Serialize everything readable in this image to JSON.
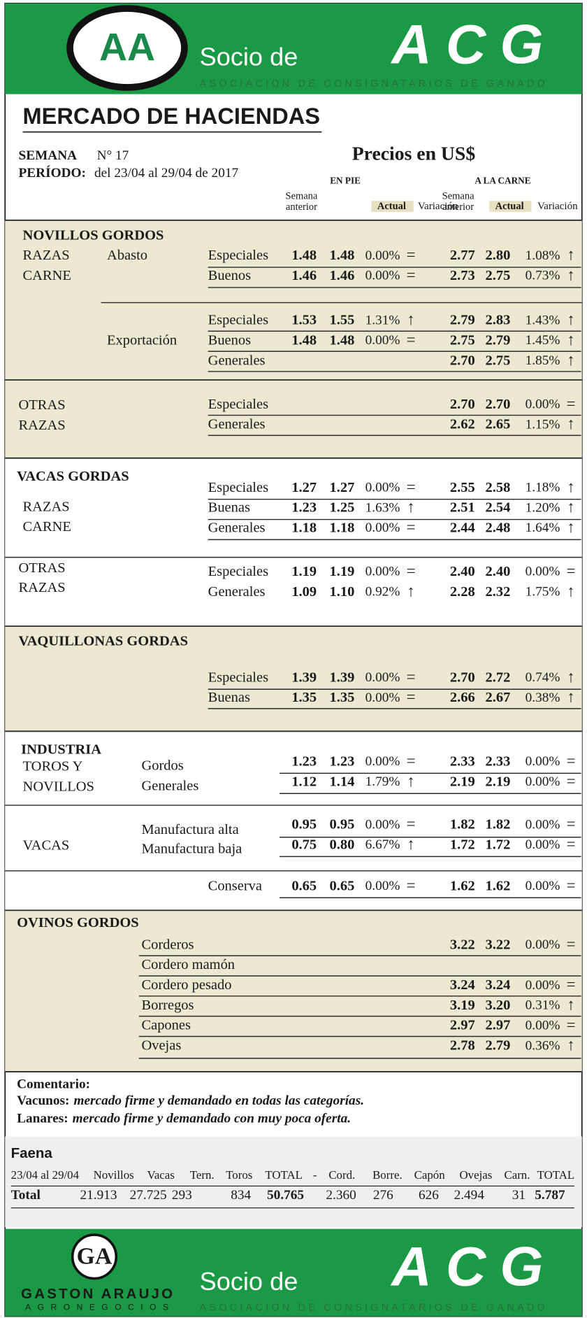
{
  "header": {
    "logo": "AA",
    "socio": "Socio de",
    "acg": "ACG",
    "acg_sub": "ASOCIACION DE CONSIGNATARIOS DE GANADO"
  },
  "title": "MERCADO DE HACIENDAS",
  "semana_label": "SEMANA",
  "semana": "N° 17",
  "periodo_label": "PERÍODO:",
  "periodo": "del 23/04 al 29/04 de 2017",
  "precios": "Precios en US$",
  "columns": {
    "pie": "EN PIE",
    "carne": "A LA CARNE",
    "prev": [
      "Semana",
      "anterior"
    ],
    "actual": "Actual",
    "var": "Variación"
  },
  "sections": [
    {
      "title": "NOVILLOS GORDOS",
      "groups": [
        {
          "labels": [
            "RAZAS",
            "CARNE"
          ],
          "sub": "Abasto",
          "rows": [
            {
              "label": "Especiales",
              "pie": [
                "1.48",
                "1.48",
                "0.00%",
                "="
              ],
              "carne": [
                "2.77",
                "2.80",
                "1.08%",
                "↑"
              ]
            },
            {
              "label": "Buenos",
              "pie": [
                "1.46",
                "1.46",
                "0.00%",
                "="
              ],
              "carne": [
                "2.73",
                "2.75",
                "0.73%",
                "↑"
              ]
            }
          ]
        },
        {
          "sub": "Exportación",
          "rows": [
            {
              "label": "Especiales",
              "pie": [
                "1.53",
                "1.55",
                "1.31%",
                "↑"
              ],
              "carne": [
                "2.79",
                "2.83",
                "1.43%",
                "↑"
              ]
            },
            {
              "label": "Buenos",
              "pie": [
                "1.48",
                "1.48",
                "0.00%",
                "="
              ],
              "carne": [
                "2.75",
                "2.79",
                "1.45%",
                "↑"
              ]
            },
            {
              "label": "Generales",
              "carne": [
                "2.70",
                "2.75",
                "1.85%",
                "↑"
              ]
            }
          ]
        }
      ]
    },
    {
      "groups": [
        {
          "labels": [
            "OTRAS",
            "RAZAS"
          ],
          "rows": [
            {
              "label": "Especiales",
              "carne": [
                "2.70",
                "2.70",
                "0.00%",
                "="
              ]
            },
            {
              "label": "Generales",
              "carne": [
                "2.62",
                "2.65",
                "1.15%",
                "↑"
              ]
            }
          ]
        }
      ]
    },
    {
      "title": "VACAS GORDAS",
      "groups": [
        {
          "labels": [
            "RAZAS",
            "CARNE"
          ],
          "rows": [
            {
              "label": "Especiales",
              "pie": [
                "1.27",
                "1.27",
                "0.00%",
                "="
              ],
              "carne": [
                "2.55",
                "2.58",
                "1.18%",
                "↑"
              ]
            },
            {
              "label": "Buenas",
              "pie": [
                "1.23",
                "1.25",
                "1.63%",
                "↑"
              ],
              "carne": [
                "2.51",
                "2.54",
                "1.20%",
                "↑"
              ]
            },
            {
              "label": "Generales",
              "pie": [
                "1.18",
                "1.18",
                "0.00%",
                "="
              ],
              "carne": [
                "2.44",
                "2.48",
                "1.64%",
                "↑"
              ]
            }
          ]
        },
        {
          "labels": [
            "OTRAS",
            "RAZAS"
          ],
          "rows": [
            {
              "label": "Especiales",
              "pie": [
                "1.19",
                "1.19",
                "0.00%",
                "="
              ],
              "carne": [
                "2.40",
                "2.40",
                "0.00%",
                "="
              ]
            },
            {
              "label": "Generales",
              "pie": [
                "1.09",
                "1.10",
                "0.92%",
                "↑"
              ],
              "carne": [
                "2.28",
                "2.32",
                "1.75%",
                "↑"
              ]
            }
          ]
        }
      ]
    },
    {
      "title": "VAQUILLONAS GORDAS",
      "groups": [
        {
          "rows": [
            {
              "label": "Especiales",
              "pie": [
                "1.39",
                "1.39",
                "0.00%",
                "="
              ],
              "carne": [
                "2.70",
                "2.72",
                "0.74%",
                "↑"
              ]
            },
            {
              "label": "Buenas",
              "pie": [
                "1.35",
                "1.35",
                "0.00%",
                "="
              ],
              "carne": [
                "2.66",
                "2.67",
                "0.38%",
                "↑"
              ]
            }
          ]
        }
      ]
    },
    {
      "title": "INDUSTRIA",
      "groups": [
        {
          "labels": [
            "TOROS Y",
            "NOVILLOS"
          ],
          "rows": [
            {
              "label": "Gordos",
              "pie": [
                "1.23",
                "1.23",
                "0.00%",
                "="
              ],
              "carne": [
                "2.33",
                "2.33",
                "0.00%",
                "="
              ]
            },
            {
              "label": "Generales",
              "pie": [
                "1.12",
                "1.14",
                "1.79%",
                "↑"
              ],
              "carne": [
                "2.19",
                "2.19",
                "0.00%",
                "="
              ]
            }
          ]
        },
        {
          "labels": [
            "VACAS"
          ],
          "rows": [
            {
              "label": "Manufactura alta",
              "pie": [
                "0.95",
                "0.95",
                "0.00%",
                "="
              ],
              "carne": [
                "1.82",
                "1.82",
                "0.00%",
                "="
              ]
            },
            {
              "label": "Manufactura baja",
              "pie": [
                "0.75",
                "0.80",
                "6.67%",
                "↑"
              ],
              "carne": [
                "1.72",
                "1.72",
                "0.00%",
                "="
              ]
            }
          ]
        },
        {
          "rows": [
            {
              "label": "Conserva",
              "pie": [
                "0.65",
                "0.65",
                "0.00%",
                "="
              ],
              "carne": [
                "1.62",
                "1.62",
                "0.00%",
                "="
              ]
            }
          ]
        }
      ]
    },
    {
      "title": "OVINOS GORDOS",
      "groups": [
        {
          "rows": [
            {
              "label": "Corderos",
              "carne": [
                "3.22",
                "3.22",
                "0.00%",
                "="
              ]
            },
            {
              "label": "Cordero mamón"
            },
            {
              "label": "Cordero pesado",
              "carne": [
                "3.24",
                "3.24",
                "0.00%",
                "="
              ]
            },
            {
              "label": "Borregos",
              "carne": [
                "3.19",
                "3.20",
                "0.31%",
                "↑"
              ]
            },
            {
              "label": "Capones",
              "carne": [
                "2.97",
                "2.97",
                "0.00%",
                "="
              ]
            },
            {
              "label": "Ovejas",
              "carne": [
                "2.78",
                "2.79",
                "0.36%",
                "↑"
              ]
            }
          ]
        }
      ]
    }
  ],
  "comment": {
    "title": "Comentario:",
    "lines": [
      {
        "label": "Vacunos:",
        "text": "mercado firme y demandado en todas las categorías."
      },
      {
        "label": "Lanares:",
        "text": "mercado firme y demandado con muy poca oferta."
      }
    ]
  },
  "faena": {
    "title": "Faena",
    "headers": [
      "23/04 al 29/04",
      "Novillos",
      "Vacas",
      "Tern.",
      "Toros",
      "TOTAL",
      "-",
      "Cord.",
      "Borre.",
      "Capón",
      "Ovejas",
      "Carn.",
      "TOTAL"
    ],
    "values": [
      "Total",
      "21.913",
      "27.725",
      "293",
      "834",
      "50.765",
      "2.360",
      "276",
      "626",
      "2.494",
      "31",
      "5.787"
    ]
  },
  "footer": {
    "logo": "GA",
    "name": "GASTON ARAUJO",
    "tagline": "AGRONEGOCIOS",
    "socio": "Socio de",
    "acg": "ACG",
    "acg_sub": "ASOCIACION DE CONSIGNATARIOS DE GANADO"
  }
}
